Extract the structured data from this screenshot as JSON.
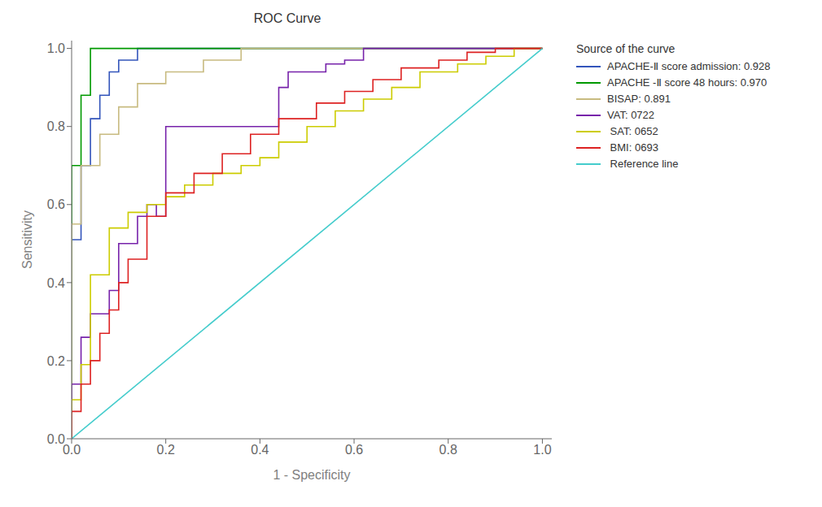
{
  "chart_data": {
    "type": "line",
    "title": "ROC Curve",
    "x_label": "1 - Specificity",
    "y_label": "Sensitivity",
    "legend_title": "Source of the curve",
    "grid": false,
    "xlim": [
      0.0,
      1.02
    ],
    "ylim": [
      0.0,
      1.02
    ],
    "xticks": [
      {
        "value": 0.0,
        "label": "0.0"
      },
      0.2,
      0.4,
      0.6,
      0.8,
      {
        "value": 1.0,
        "label": "1.0"
      }
    ],
    "yticks": [
      {
        "value": 0.0,
        "label": "0.0"
      },
      0.2,
      0.4,
      0.6,
      0.8,
      {
        "value": 1.0,
        "label": "1.0"
      }
    ],
    "series": [
      {
        "name": "APACHE-Ⅱ score admission: 0.928",
        "color": "#3355bb",
        "x": [
          0.0,
          0.0,
          0.02,
          0.02,
          0.04,
          0.04,
          0.06,
          0.06,
          0.08,
          0.08,
          0.1,
          0.1,
          0.14,
          0.14,
          1.0
        ],
        "values": [
          0.0,
          0.51,
          0.51,
          0.7,
          0.7,
          0.82,
          0.82,
          0.88,
          0.88,
          0.94,
          0.94,
          0.97,
          0.97,
          1.0,
          1.0
        ]
      },
      {
        "name": "APACHE -Ⅱ score 48 hours: 0.970",
        "color": "#009900",
        "x": [
          0.0,
          0.0,
          0.02,
          0.02,
          0.04,
          0.04,
          1.0
        ],
        "values": [
          0.0,
          0.7,
          0.7,
          0.88,
          0.88,
          1.0,
          1.0
        ]
      },
      {
        "name": "BISAP: 0.891",
        "color": "#c8bb80",
        "x": [
          0.0,
          0.0,
          0.02,
          0.02,
          0.06,
          0.06,
          0.1,
          0.1,
          0.14,
          0.14,
          0.2,
          0.2,
          0.28,
          0.28,
          0.36,
          0.36,
          1.0
        ],
        "values": [
          0.0,
          0.55,
          0.55,
          0.7,
          0.7,
          0.78,
          0.78,
          0.85,
          0.85,
          0.91,
          0.91,
          0.94,
          0.94,
          0.97,
          0.97,
          1.0,
          1.0
        ]
      },
      {
        "name": "VAT: 0722",
        "color": "#7722aa",
        "x": [
          0.0,
          0.0,
          0.02,
          0.02,
          0.04,
          0.04,
          0.08,
          0.08,
          0.1,
          0.1,
          0.14,
          0.14,
          0.16,
          0.16,
          0.18,
          0.18,
          0.2,
          0.2,
          0.44,
          0.44,
          0.46,
          0.46,
          0.54,
          0.54,
          0.58,
          0.58,
          0.62,
          0.62,
          1.0
        ],
        "values": [
          0.0,
          0.14,
          0.14,
          0.26,
          0.26,
          0.32,
          0.32,
          0.38,
          0.38,
          0.5,
          0.5,
          0.57,
          0.57,
          0.6,
          0.6,
          0.57,
          0.57,
          0.8,
          0.8,
          0.9,
          0.9,
          0.94,
          0.94,
          0.96,
          0.96,
          0.97,
          0.97,
          1.0,
          1.0
        ]
      },
      {
        "name": " SAT: 0652",
        "color": "#cccc00",
        "x": [
          0.0,
          0.0,
          0.02,
          0.02,
          0.04,
          0.04,
          0.08,
          0.08,
          0.12,
          0.12,
          0.16,
          0.16,
          0.2,
          0.2,
          0.24,
          0.24,
          0.3,
          0.3,
          0.36,
          0.36,
          0.4,
          0.4,
          0.44,
          0.44,
          0.5,
          0.5,
          0.56,
          0.56,
          0.62,
          0.62,
          0.68,
          0.68,
          0.74,
          0.74,
          0.82,
          0.82,
          0.88,
          0.88,
          0.94,
          0.94,
          1.0
        ],
        "values": [
          0.0,
          0.1,
          0.1,
          0.19,
          0.19,
          0.42,
          0.42,
          0.54,
          0.54,
          0.58,
          0.58,
          0.6,
          0.6,
          0.62,
          0.62,
          0.65,
          0.65,
          0.68,
          0.68,
          0.7,
          0.7,
          0.72,
          0.72,
          0.76,
          0.76,
          0.8,
          0.8,
          0.84,
          0.84,
          0.87,
          0.87,
          0.9,
          0.9,
          0.94,
          0.94,
          0.96,
          0.96,
          0.98,
          0.98,
          1.0,
          1.0
        ]
      },
      {
        "name": " BMI: 0693",
        "color": "#dd2222",
        "x": [
          0.0,
          0.0,
          0.02,
          0.02,
          0.04,
          0.04,
          0.06,
          0.06,
          0.08,
          0.08,
          0.1,
          0.1,
          0.12,
          0.12,
          0.16,
          0.16,
          0.2,
          0.2,
          0.26,
          0.26,
          0.32,
          0.32,
          0.38,
          0.38,
          0.44,
          0.44,
          0.52,
          0.52,
          0.58,
          0.58,
          0.64,
          0.64,
          0.7,
          0.7,
          0.78,
          0.78,
          0.84,
          0.84,
          0.9,
          0.9,
          0.96,
          0.96,
          1.0
        ],
        "values": [
          0.0,
          0.07,
          0.07,
          0.14,
          0.14,
          0.2,
          0.2,
          0.27,
          0.27,
          0.33,
          0.33,
          0.4,
          0.4,
          0.46,
          0.46,
          0.57,
          0.57,
          0.63,
          0.63,
          0.68,
          0.68,
          0.73,
          0.73,
          0.78,
          0.78,
          0.82,
          0.82,
          0.86,
          0.86,
          0.89,
          0.89,
          0.92,
          0.92,
          0.95,
          0.95,
          0.97,
          0.97,
          0.99,
          0.99,
          1.0,
          1.0,
          1.0,
          1.0
        ]
      },
      {
        "name": " Reference line",
        "color": "#44cccc",
        "x": [
          0.0,
          1.0
        ],
        "values": [
          0.0,
          1.0
        ]
      }
    ]
  }
}
